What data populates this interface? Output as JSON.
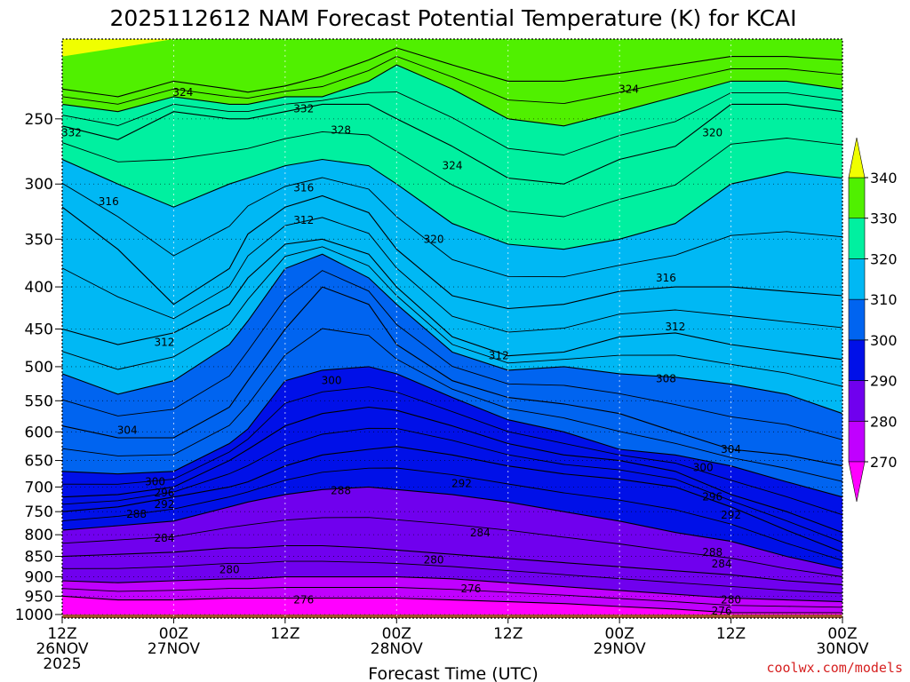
{
  "chart_data": {
    "type": "heatmap",
    "title": "2025112612 NAM Forecast Potential Temperature (K) for KCAI",
    "xlabel": "Forecast Time (UTC)",
    "ylabel": "",
    "credit": "coolwx.com/models",
    "x_range_hours": [
      0,
      84
    ],
    "y_range_hPa": [
      1010,
      200
    ],
    "y_ticks": [
      250,
      300,
      350,
      400,
      450,
      500,
      550,
      600,
      650,
      700,
      750,
      800,
      850,
      900,
      950,
      1000
    ],
    "x_ticks": [
      {
        "hour": 0,
        "line1": "12Z",
        "line2": "26NOV",
        "line3": "2025"
      },
      {
        "hour": 12,
        "line1": "00Z",
        "line2": "27NOV",
        "line3": ""
      },
      {
        "hour": 24,
        "line1": "12Z",
        "line2": "",
        "line3": ""
      },
      {
        "hour": 36,
        "line1": "00Z",
        "line2": "28NOV",
        "line3": ""
      },
      {
        "hour": 48,
        "line1": "12Z",
        "line2": "",
        "line3": ""
      },
      {
        "hour": 60,
        "line1": "00Z",
        "line2": "29NOV",
        "line3": ""
      },
      {
        "hour": 72,
        "line1": "12Z",
        "line2": "",
        "line3": ""
      },
      {
        "hour": 84,
        "line1": "00Z",
        "line2": "30NOV",
        "line3": ""
      }
    ],
    "colorbar": {
      "levels": [
        270,
        280,
        290,
        300,
        310,
        320,
        330,
        340
      ],
      "colors": [
        "#ff00ff",
        "#c000ff",
        "#7000ee",
        "#0010e8",
        "#0064f0",
        "#00b8f4",
        "#00f0a0",
        "#50f000",
        "#f0ff00"
      ],
      "labels": [
        "270",
        "280",
        "290",
        "300",
        "310",
        "320",
        "330",
        "340"
      ]
    },
    "hours": [
      0,
      6,
      12,
      18,
      20,
      24,
      28,
      33,
      36,
      42,
      48,
      54,
      60,
      66,
      72,
      78,
      84
    ],
    "isentropes_hPa": {
      "276": [
        950,
        960,
        960,
        955,
        955,
        955,
        955,
        955,
        955,
        960,
        965,
        970,
        978,
        985,
        995,
        995,
        995
      ],
      "280": [
        910,
        915,
        910,
        905,
        905,
        900,
        900,
        900,
        900,
        905,
        915,
        925,
        935,
        945,
        955,
        960,
        965
      ],
      "284": [
        850,
        845,
        840,
        830,
        830,
        825,
        825,
        830,
        835,
        845,
        855,
        865,
        875,
        885,
        895,
        910,
        920
      ],
      "288": [
        790,
        780,
        770,
        740,
        730,
        715,
        705,
        700,
        705,
        715,
        730,
        750,
        770,
        795,
        815,
        850,
        880
      ],
      "292": [
        750,
        740,
        720,
        700,
        690,
        660,
        640,
        630,
        625,
        640,
        660,
        675,
        685,
        700,
        740,
        790,
        840
      ],
      "296": [
        720,
        715,
        700,
        650,
        630,
        590,
        570,
        560,
        565,
        590,
        620,
        640,
        650,
        670,
        715,
        750,
        795
      ],
      "300": [
        670,
        675,
        670,
        620,
        595,
        520,
        505,
        500,
        510,
        545,
        580,
        600,
        630,
        640,
        660,
        690,
        720
      ],
      "304": [
        590,
        610,
        610,
        560,
        520,
        450,
        400,
        420,
        470,
        520,
        545,
        555,
        570,
        600,
        630,
        640,
        660
      ],
      "308": [
        510,
        540,
        520,
        470,
        440,
        380,
        365,
        390,
        420,
        480,
        505,
        500,
        510,
        515,
        525,
        540,
        570
      ],
      "312": [
        450,
        470,
        455,
        420,
        390,
        355,
        350,
        365,
        400,
        460,
        485,
        480,
        460,
        455,
        470,
        480,
        490
      ],
      "316": [
        320,
        360,
        420,
        380,
        345,
        320,
        310,
        325,
        360,
        410,
        425,
        420,
        405,
        400,
        400,
        405,
        410
      ],
      "320": [
        280,
        300,
        320,
        300,
        295,
        285,
        280,
        285,
        300,
        335,
        355,
        360,
        350,
        335,
        300,
        290,
        295
      ],
      "324": [
        255,
        265,
        245,
        250,
        250,
        245,
        240,
        240,
        250,
        270,
        295,
        300,
        280,
        270,
        240,
        240,
        245
      ],
      "328": [
        240,
        245,
        235,
        240,
        240,
        235,
        235,
        225,
        215,
        230,
        250,
        255,
        245,
        235,
        225,
        225,
        230
      ],
      "332": [
        230,
        235,
        225,
        230,
        232,
        228,
        222,
        212,
        205,
        215,
        225,
        225,
        220,
        215,
        210,
        210,
        212
      ],
      "340": [
        210,
        205,
        200,
        200,
        200,
        200,
        200,
        200,
        200,
        200,
        200,
        200,
        200,
        200,
        200,
        200,
        200
      ]
    },
    "contour_labels": [
      {
        "text": "324",
        "hour": 13,
        "hPa": 232
      },
      {
        "text": "332",
        "hour": 1,
        "hPa": 260
      },
      {
        "text": "332",
        "hour": 26,
        "hPa": 243
      },
      {
        "text": "328",
        "hour": 30,
        "hPa": 258
      },
      {
        "text": "324",
        "hour": 61,
        "hPa": 230
      },
      {
        "text": "320",
        "hour": 70,
        "hPa": 260
      },
      {
        "text": "324",
        "hour": 42,
        "hPa": 285
      },
      {
        "text": "316",
        "hour": 5,
        "hPa": 315
      },
      {
        "text": "316",
        "hour": 26,
        "hPa": 303
      },
      {
        "text": "312",
        "hour": 26,
        "hPa": 332
      },
      {
        "text": "320",
        "hour": 40,
        "hPa": 350
      },
      {
        "text": "316",
        "hour": 65,
        "hPa": 390
      },
      {
        "text": "312",
        "hour": 66,
        "hPa": 447
      },
      {
        "text": "312",
        "hour": 11,
        "hPa": 467
      },
      {
        "text": "312",
        "hour": 47,
        "hPa": 485
      },
      {
        "text": "308",
        "hour": 65,
        "hPa": 517
      },
      {
        "text": "300",
        "hour": 29,
        "hPa": 520
      },
      {
        "text": "304",
        "hour": 7,
        "hPa": 597
      },
      {
        "text": "304",
        "hour": 72,
        "hPa": 630
      },
      {
        "text": "300",
        "hour": 69,
        "hPa": 663
      },
      {
        "text": "300",
        "hour": 10,
        "hPa": 690
      },
      {
        "text": "296",
        "hour": 11,
        "hPa": 712
      },
      {
        "text": "292",
        "hour": 11,
        "hPa": 735
      },
      {
        "text": "288",
        "hour": 8,
        "hPa": 755
      },
      {
        "text": "288",
        "hour": 30,
        "hPa": 707
      },
      {
        "text": "292",
        "hour": 43,
        "hPa": 693
      },
      {
        "text": "296",
        "hour": 70,
        "hPa": 720
      },
      {
        "text": "292",
        "hour": 72,
        "hPa": 757
      },
      {
        "text": "284",
        "hour": 11,
        "hPa": 808
      },
      {
        "text": "284",
        "hour": 45,
        "hPa": 796
      },
      {
        "text": "288",
        "hour": 70,
        "hPa": 840
      },
      {
        "text": "284",
        "hour": 71,
        "hPa": 868
      },
      {
        "text": "280",
        "hour": 18,
        "hPa": 882
      },
      {
        "text": "280",
        "hour": 40,
        "hPa": 858
      },
      {
        "text": "276",
        "hour": 26,
        "hPa": 960
      },
      {
        "text": "276",
        "hour": 44,
        "hPa": 930
      },
      {
        "text": "280",
        "hour": 72,
        "hPa": 960
      },
      {
        "text": "276",
        "hour": 71,
        "hPa": 990
      }
    ]
  }
}
